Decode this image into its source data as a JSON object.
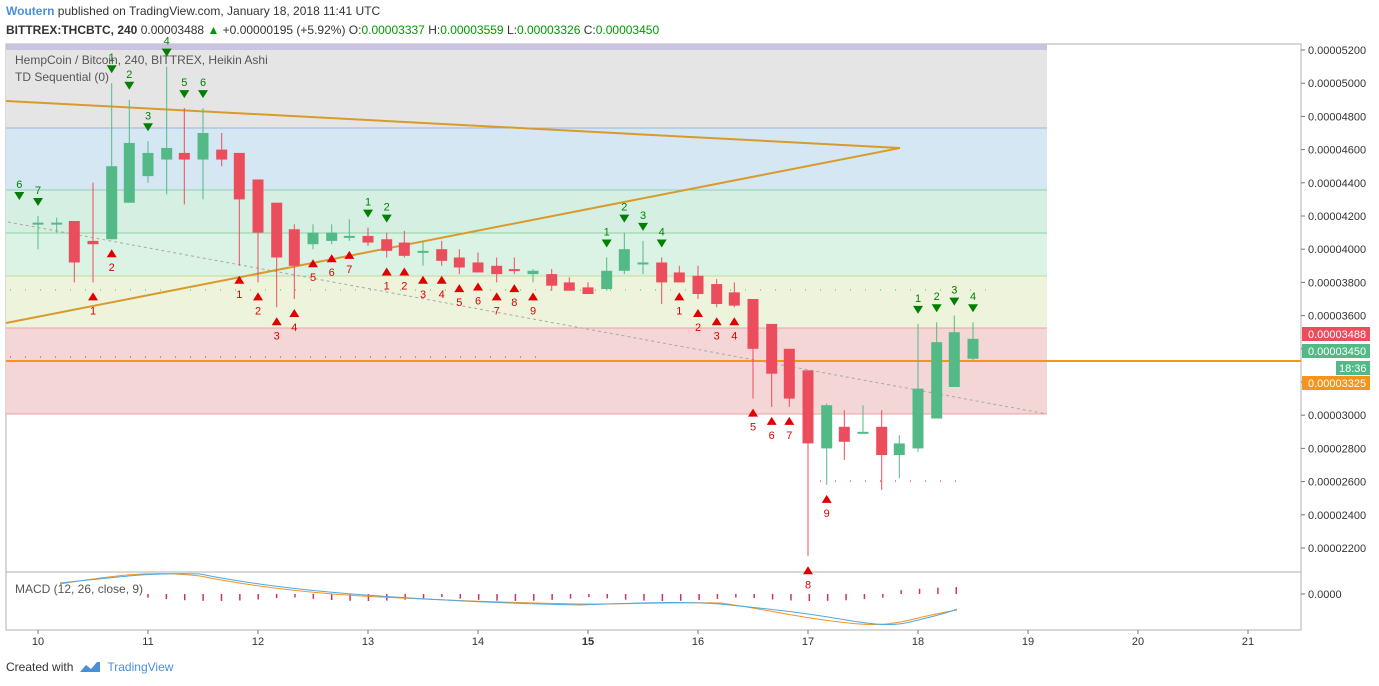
{
  "header": {
    "author": "Woutern",
    "published_text": "published on TradingView.com, January 18, 2018 11:41 UTC",
    "symbol": "BITTREX:THCBTC, 240",
    "price": "0.00003488",
    "change_arrow": "▲",
    "change": "+0.00000195 (+5.92%)",
    "open_label": "O:",
    "open": "0.00003337",
    "high_label": "H:",
    "high": "0.00003559",
    "low_label": "L:",
    "low": "0.00003326",
    "close_label": "C:",
    "close": "0.00003450"
  },
  "legend": {
    "series_title": "HempCoin / Bitcoin, 240, BITTREX, Heikin Ashi",
    "indicator": "TD Sequential (0)",
    "macd": "MACD (12, 26, close, 9)"
  },
  "footer": {
    "created_with": "Created with",
    "brand": "TradingView"
  },
  "price_tags": {
    "last": "0.00003488",
    "close": "0.00003450",
    "countdown": "18:36",
    "hline": "0.00003325",
    "macd_zero": "0.0000"
  },
  "colors": {
    "up": "#53b987",
    "down": "#eb4d5c",
    "trend": "#d89b2b",
    "hline": "#f7941d",
    "td_buy": "#e00000",
    "td_sell": "#008000"
  },
  "chart_data": {
    "type": "candlestick",
    "title": "HempCoin / Bitcoin, 240, BITTREX, Heikin Ashi",
    "y_axis_ticks": [
      "0.00005200",
      "0.00005000",
      "0.00004800",
      "0.00004600",
      "0.00004400",
      "0.00004200",
      "0.00004000",
      "0.00003800",
      "0.00003600",
      "0.00003400",
      "0.00003200",
      "0.00003000",
      "0.00002800",
      "0.00002600",
      "0.00002400",
      "0.00002200"
    ],
    "y_range": [
      2.08e-05,
      5.23e-05
    ],
    "x_axis_ticks": [
      "10",
      "11",
      "12",
      "13",
      "14",
      "15",
      "16",
      "17",
      "18",
      "19",
      "20",
      "21"
    ],
    "x_tick_days": [
      10,
      11,
      12,
      13,
      14,
      15,
      16,
      17,
      18,
      19,
      20,
      21
    ],
    "x_range_days": [
      9.7,
      21.5
    ],
    "candles": [
      {
        "day": 10.0,
        "o": 4.15e-05,
        "h": 4.2e-05,
        "l": 4e-05,
        "c": 4.16e-05
      },
      {
        "day": 10.17,
        "o": 4.16e-05,
        "h": 4.19e-05,
        "l": 4.1e-05,
        "c": 4.16e-05
      },
      {
        "day": 10.33,
        "o": 4.17e-05,
        "h": 4.17e-05,
        "l": 3.8e-05,
        "c": 3.92e-05
      },
      {
        "day": 10.5,
        "o": 4.05e-05,
        "h": 4.4e-05,
        "l": 3.8e-05,
        "c": 4.03e-05
      },
      {
        "day": 10.67,
        "o": 4.06e-05,
        "h": 5e-05,
        "l": 4.06e-05,
        "c": 4.5e-05
      },
      {
        "day": 10.83,
        "o": 4.28e-05,
        "h": 4.9e-05,
        "l": 4.28e-05,
        "c": 4.64e-05
      },
      {
        "day": 11.0,
        "o": 4.44e-05,
        "h": 4.65e-05,
        "l": 4.4e-05,
        "c": 4.58e-05
      },
      {
        "day": 11.17,
        "o": 4.54e-05,
        "h": 5.1e-05,
        "l": 4.33e-05,
        "c": 4.61e-05
      },
      {
        "day": 11.33,
        "o": 4.58e-05,
        "h": 4.85e-05,
        "l": 4.27e-05,
        "c": 4.54e-05
      },
      {
        "day": 11.5,
        "o": 4.54e-05,
        "h": 4.85e-05,
        "l": 4.3e-05,
        "c": 4.7e-05
      },
      {
        "day": 11.67,
        "o": 4.6e-05,
        "h": 4.7e-05,
        "l": 4.5e-05,
        "c": 4.54e-05
      },
      {
        "day": 11.83,
        "o": 4.58e-05,
        "h": 4.58e-05,
        "l": 3.9e-05,
        "c": 4.3e-05
      },
      {
        "day": 12.0,
        "o": 4.42e-05,
        "h": 4.42e-05,
        "l": 3.8e-05,
        "c": 4.1e-05
      },
      {
        "day": 12.17,
        "o": 4.28e-05,
        "h": 4.28e-05,
        "l": 3.65e-05,
        "c": 3.95e-05
      },
      {
        "day": 12.33,
        "o": 4.12e-05,
        "h": 4.15e-05,
        "l": 3.7e-05,
        "c": 3.9e-05
      },
      {
        "day": 12.5,
        "o": 4.03e-05,
        "h": 4.15e-05,
        "l": 4e-05,
        "c": 4.1e-05
      },
      {
        "day": 12.67,
        "o": 4.05e-05,
        "h": 4.15e-05,
        "l": 4.03e-05,
        "c": 4.1e-05
      },
      {
        "day": 12.83,
        "o": 4.08e-05,
        "h": 4.18e-05,
        "l": 4.05e-05,
        "c": 4.08e-05
      },
      {
        "day": 13.0,
        "o": 4.08e-05,
        "h": 4.13e-05,
        "l": 4.02e-05,
        "c": 4.04e-05
      },
      {
        "day": 13.17,
        "o": 4.06e-05,
        "h": 4.1e-05,
        "l": 3.95e-05,
        "c": 3.99e-05
      },
      {
        "day": 13.33,
        "o": 4.04e-05,
        "h": 4.11e-05,
        "l": 3.95e-05,
        "c": 3.96e-05
      },
      {
        "day": 13.5,
        "o": 3.99e-05,
        "h": 4.05e-05,
        "l": 3.9e-05,
        "c": 3.99e-05
      },
      {
        "day": 13.67,
        "o": 4e-05,
        "h": 4.05e-05,
        "l": 3.9e-05,
        "c": 3.93e-05
      },
      {
        "day": 13.83,
        "o": 3.95e-05,
        "h": 4e-05,
        "l": 3.85e-05,
        "c": 3.89e-05
      },
      {
        "day": 14.0,
        "o": 3.92e-05,
        "h": 3.98e-05,
        "l": 3.86e-05,
        "c": 3.86e-05
      },
      {
        "day": 14.17,
        "o": 3.9e-05,
        "h": 3.95e-05,
        "l": 3.8e-05,
        "c": 3.85e-05
      },
      {
        "day": 14.33,
        "o": 3.88e-05,
        "h": 3.95e-05,
        "l": 3.85e-05,
        "c": 3.87e-05
      },
      {
        "day": 14.5,
        "o": 3.85e-05,
        "h": 3.88e-05,
        "l": 3.8e-05,
        "c": 3.87e-05
      },
      {
        "day": 14.67,
        "o": 3.85e-05,
        "h": 3.88e-05,
        "l": 3.75e-05,
        "c": 3.78e-05
      },
      {
        "day": 14.83,
        "o": 3.8e-05,
        "h": 3.83e-05,
        "l": 3.75e-05,
        "c": 3.75e-05
      },
      {
        "day": 15.0,
        "o": 3.77e-05,
        "h": 3.8e-05,
        "l": 3.74e-05,
        "c": 3.73e-05
      },
      {
        "day": 15.17,
        "o": 3.76e-05,
        "h": 3.95e-05,
        "l": 3.75e-05,
        "c": 3.87e-05
      },
      {
        "day": 15.33,
        "o": 3.87e-05,
        "h": 4.1e-05,
        "l": 3.85e-05,
        "c": 4e-05
      },
      {
        "day": 15.5,
        "o": 3.92e-05,
        "h": 4.05e-05,
        "l": 3.85e-05,
        "c": 3.92e-05
      },
      {
        "day": 15.67,
        "o": 3.92e-05,
        "h": 3.95e-05,
        "l": 3.67e-05,
        "c": 3.8e-05
      },
      {
        "day": 15.83,
        "o": 3.86e-05,
        "h": 3.9e-05,
        "l": 3.8e-05,
        "c": 3.8e-05
      },
      {
        "day": 16.0,
        "o": 3.84e-05,
        "h": 3.9e-05,
        "l": 3.7e-05,
        "c": 3.73e-05
      },
      {
        "day": 16.17,
        "o": 3.79e-05,
        "h": 3.82e-05,
        "l": 3.65e-05,
        "c": 3.67e-05
      },
      {
        "day": 16.33,
        "o": 3.74e-05,
        "h": 3.8e-05,
        "l": 3.65e-05,
        "c": 3.66e-05
      },
      {
        "day": 16.5,
        "o": 3.7e-05,
        "h": 3.7e-05,
        "l": 3.1e-05,
        "c": 3.4e-05
      },
      {
        "day": 16.67,
        "o": 3.55e-05,
        "h": 3.55e-05,
        "l": 3.05e-05,
        "c": 3.25e-05
      },
      {
        "day": 16.83,
        "o": 3.4e-05,
        "h": 3.4e-05,
        "l": 3.05e-05,
        "c": 3.1e-05
      },
      {
        "day": 17.0,
        "o": 3.27e-05,
        "h": 3.27e-05,
        "l": 2.15e-05,
        "c": 2.83e-05
      },
      {
        "day": 17.17,
        "o": 2.8e-05,
        "h": 3.07e-05,
        "l": 2.58e-05,
        "c": 3.06e-05
      },
      {
        "day": 17.33,
        "o": 2.93e-05,
        "h": 3.03e-05,
        "l": 2.73e-05,
        "c": 2.84e-05
      },
      {
        "day": 17.5,
        "o": 2.9e-05,
        "h": 3.06e-05,
        "l": 2.9e-05,
        "c": 2.9e-05
      },
      {
        "day": 17.67,
        "o": 2.93e-05,
        "h": 3.03e-05,
        "l": 2.55e-05,
        "c": 2.76e-05
      },
      {
        "day": 17.83,
        "o": 2.76e-05,
        "h": 2.88e-05,
        "l": 2.62e-05,
        "c": 2.83e-05
      },
      {
        "day": 18.0,
        "o": 2.8e-05,
        "h": 3.55e-05,
        "l": 2.78e-05,
        "c": 3.16e-05
      },
      {
        "day": 18.17,
        "o": 2.98e-05,
        "h": 3.56e-05,
        "l": 2.98e-05,
        "c": 3.44e-05
      },
      {
        "day": 18.33,
        "o": 3.17e-05,
        "h": 3.6e-05,
        "l": 3.17e-05,
        "c": 3.5e-05
      },
      {
        "day": 18.5,
        "o": 3.34e-05,
        "h": 3.56e-05,
        "l": 3.33e-05,
        "c": 3.46e-05
      }
    ],
    "td_buy_marks": [
      {
        "day": 10.5,
        "label": "1"
      },
      {
        "day": 10.67,
        "label": "2"
      },
      {
        "day": 11.83,
        "label": "1"
      },
      {
        "day": 12.0,
        "label": "2"
      },
      {
        "day": 12.17,
        "label": "3"
      },
      {
        "day": 12.33,
        "label": "4"
      },
      {
        "day": 12.5,
        "label": "5"
      },
      {
        "day": 12.67,
        "label": "6"
      },
      {
        "day": 12.83,
        "label": "7"
      },
      {
        "day": 13.17,
        "label": "1"
      },
      {
        "day": 13.33,
        "label": "2"
      },
      {
        "day": 13.5,
        "label": "3"
      },
      {
        "day": 13.67,
        "label": "4"
      },
      {
        "day": 13.83,
        "label": "5"
      },
      {
        "day": 14.0,
        "label": "6"
      },
      {
        "day": 14.17,
        "label": "7"
      },
      {
        "day": 14.33,
        "label": "8"
      },
      {
        "day": 14.5,
        "label": "9"
      },
      {
        "day": 15.83,
        "label": "1"
      },
      {
        "day": 16.0,
        "label": "2"
      },
      {
        "day": 16.17,
        "label": "3"
      },
      {
        "day": 16.33,
        "label": "4"
      },
      {
        "day": 16.5,
        "label": "5"
      },
      {
        "day": 16.67,
        "label": "6"
      },
      {
        "day": 16.83,
        "label": "7"
      },
      {
        "day": 17.0,
        "label": "8"
      },
      {
        "day": 17.17,
        "label": "9"
      }
    ],
    "td_sell_marks": [
      {
        "day": 9.83,
        "label": "6"
      },
      {
        "day": 10.0,
        "label": "7"
      },
      {
        "day": 10.67,
        "label": "1"
      },
      {
        "day": 10.83,
        "label": "2"
      },
      {
        "day": 11.0,
        "label": "3"
      },
      {
        "day": 11.17,
        "label": "4"
      },
      {
        "day": 11.33,
        "label": "5"
      },
      {
        "day": 11.5,
        "label": "6"
      },
      {
        "day": 13.0,
        "label": "1"
      },
      {
        "day": 13.17,
        "label": "2"
      },
      {
        "day": 15.17,
        "label": "1"
      },
      {
        "day": 15.33,
        "label": "2"
      },
      {
        "day": 15.5,
        "label": "3"
      },
      {
        "day": 15.67,
        "label": "4"
      },
      {
        "day": 18.0,
        "label": "1"
      },
      {
        "day": 18.17,
        "label": "2"
      },
      {
        "day": 18.33,
        "label": "3"
      },
      {
        "day": 18.5,
        "label": "4"
      }
    ],
    "horizontal_line": 3.325e-05
  }
}
